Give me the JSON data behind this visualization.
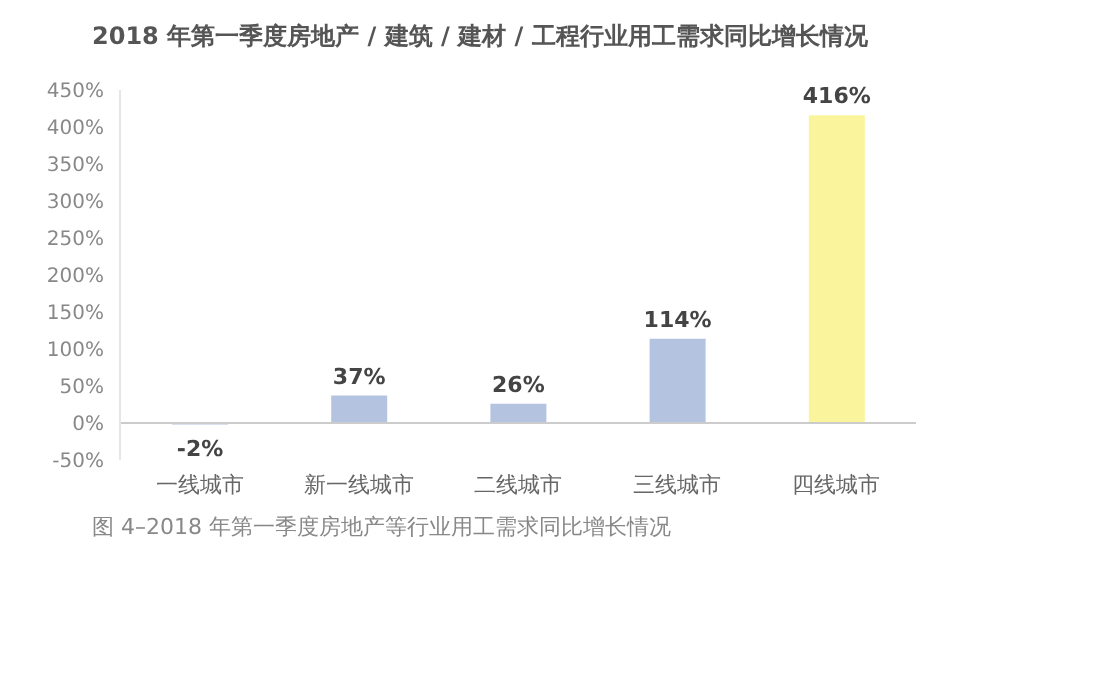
{
  "chart_data": {
    "type": "bar",
    "title": "2018 年第一季度房地产 / 建筑 / 建材 / 工程行业用工需求同比增长情况",
    "categories": [
      "一线城市",
      "新一线城市",
      "二线城市",
      "三线城市",
      "四线城市"
    ],
    "values": [
      -2,
      37,
      26,
      114,
      416
    ],
    "colors": [
      "#b4c3df",
      "#b4c3df",
      "#b4c3df",
      "#b4c3df",
      "#faf59c"
    ],
    "value_labels": [
      "-2%",
      "37%",
      "26%",
      "114%",
      "416%"
    ],
    "ylim": [
      -50,
      450
    ],
    "yticks": [
      {
        "value": -50,
        "label": "-50%"
      },
      {
        "value": 0,
        "label": "0%"
      },
      {
        "value": 50,
        "label": "50%"
      },
      {
        "value": 100,
        "label": "100%"
      },
      {
        "value": 150,
        "label": "150%"
      },
      {
        "value": 200,
        "label": "200%"
      },
      {
        "value": 250,
        "label": "250%"
      },
      {
        "value": 300,
        "label": "300%"
      },
      {
        "value": 350,
        "label": "350%"
      },
      {
        "value": 400,
        "label": "400%"
      },
      {
        "value": 450,
        "label": "450%"
      }
    ],
    "annotations": [
      "图 4–2018 年第一季度房地产等行业用工需求同比增长情况"
    ]
  }
}
